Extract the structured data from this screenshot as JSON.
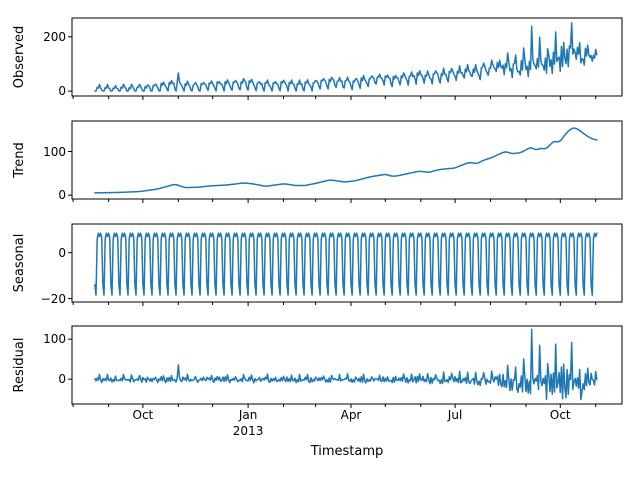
{
  "figure": {
    "background": "#ffffff"
  },
  "chart_data": {
    "type": "line",
    "xlabel": "Timestamp",
    "line_color": "#1f77b4",
    "axis_color": "#000000",
    "n_days": 440,
    "seed": 11,
    "x_axis": {
      "xlim_days": [
        -20,
        461
      ],
      "major_ticks": [
        {
          "day": 42,
          "label": "Oct"
        },
        {
          "day": 134,
          "label": "Jan"
        },
        {
          "day": 224,
          "label": "Apr"
        },
        {
          "day": 315,
          "label": "Jul"
        },
        {
          "day": 407,
          "label": "Oct"
        }
      ],
      "year_label": {
        "day": 134,
        "label": "2013"
      },
      "minor_tick_days": [
        -19,
        12,
        73,
        103,
        165,
        193,
        254,
        285,
        346,
        377,
        438
      ]
    },
    "panels": [
      {
        "ylabel": "Observed",
        "series": "observed",
        "ylim": [
          -18,
          269
        ],
        "yticks": [
          {
            "v": 0,
            "label": "0"
          },
          {
            "v": 200,
            "label": "200"
          }
        ]
      },
      {
        "ylabel": "Trend",
        "series": "trend",
        "ylim": [
          -9,
          170
        ],
        "yticks": [
          {
            "v": 0,
            "label": "0"
          },
          {
            "v": 100,
            "label": "100"
          }
        ]
      },
      {
        "ylabel": "Seasonal",
        "series": "seasonal",
        "ylim": [
          -21.5,
          12.5
        ],
        "yticks": [
          {
            "v": -20,
            "label": "−20"
          },
          {
            "v": 0,
            "label": "0"
          }
        ]
      },
      {
        "ylabel": "Residual",
        "series": "residual",
        "ylim": [
          -62,
          133
        ],
        "yticks": [
          {
            "v": 0,
            "label": "0"
          },
          {
            "v": 100,
            "label": "100"
          }
        ]
      }
    ],
    "series_spec": {
      "trend_anchors": [
        [
          0,
          5
        ],
        [
          20,
          6
        ],
        [
          39,
          8
        ],
        [
          55,
          14
        ],
        [
          66,
          22
        ],
        [
          70,
          25
        ],
        [
          79,
          17
        ],
        [
          90,
          18
        ],
        [
          100,
          21
        ],
        [
          115,
          23
        ],
        [
          131,
          28
        ],
        [
          140,
          25
        ],
        [
          149,
          20
        ],
        [
          160,
          24
        ],
        [
          166,
          26
        ],
        [
          175,
          22
        ],
        [
          184,
          22
        ],
        [
          195,
          28
        ],
        [
          206,
          35
        ],
        [
          213,
          32
        ],
        [
          219,
          30
        ],
        [
          228,
          33
        ],
        [
          235,
          38
        ],
        [
          241,
          42
        ],
        [
          248,
          45
        ],
        [
          255,
          48
        ],
        [
          258,
          44
        ],
        [
          262,
          43
        ],
        [
          268,
          46
        ],
        [
          275,
          50
        ],
        [
          284,
          55
        ],
        [
          292,
          52
        ],
        [
          300,
          58
        ],
        [
          306,
          60
        ],
        [
          315,
          62
        ],
        [
          322,
          70
        ],
        [
          328,
          75
        ],
        [
          334,
          72
        ],
        [
          340,
          80
        ],
        [
          346,
          85
        ],
        [
          352,
          92
        ],
        [
          359,
          100
        ],
        [
          365,
          95
        ],
        [
          372,
          97
        ],
        [
          378,
          105
        ],
        [
          381,
          110
        ],
        [
          386,
          103
        ],
        [
          390,
          108
        ],
        [
          394,
          105
        ],
        [
          398,
          115
        ],
        [
          402,
          125
        ],
        [
          406,
          120
        ],
        [
          411,
          138
        ],
        [
          416,
          152
        ],
        [
          420,
          155
        ],
        [
          424,
          148
        ],
        [
          428,
          140
        ],
        [
          432,
          133
        ],
        [
          437,
          127
        ],
        [
          439,
          126
        ]
      ],
      "seasonal_weekly": [
        6,
        8.5,
        7,
        8.5,
        6.5,
        -14,
        -18.5
      ],
      "start_dow": 5,
      "residual_weekly": [
        3,
        -5,
        13,
        -3,
        -7,
        2,
        -6
      ],
      "noise_envelope": [
        [
          0,
          8
        ],
        [
          100,
          8
        ],
        [
          200,
          8
        ],
        [
          260,
          9
        ],
        [
          300,
          11
        ],
        [
          330,
          14
        ],
        [
          355,
          20
        ],
        [
          370,
          30
        ],
        [
          385,
          42
        ],
        [
          400,
          38
        ],
        [
          415,
          42
        ],
        [
          430,
          35
        ],
        [
          439,
          28
        ]
      ],
      "spikes": [
        [
          73,
          38
        ],
        [
          382,
          85
        ],
        [
          389,
          35
        ],
        [
          395,
          -30
        ],
        [
          403,
          40
        ],
        [
          409,
          -28
        ],
        [
          417,
          30
        ],
        [
          425,
          -22
        ]
      ],
      "observed_min_clip": 0.3
    }
  }
}
